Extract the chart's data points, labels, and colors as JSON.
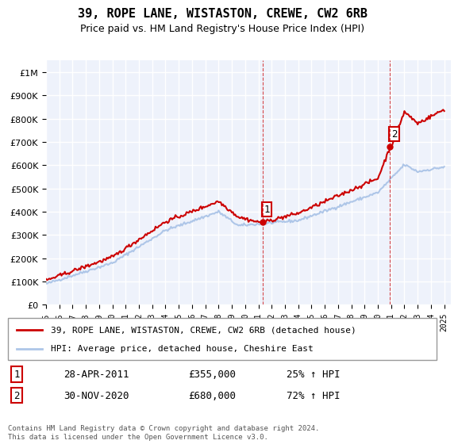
{
  "title": "39, ROPE LANE, WISTASTON, CREWE, CW2 6RB",
  "subtitle": "Price paid vs. HM Land Registry's House Price Index (HPI)",
  "ylabel_ticks": [
    "£0",
    "£100K",
    "£200K",
    "£300K",
    "£400K",
    "£500K",
    "£600K",
    "£700K",
    "£800K",
    "£900K",
    "£1M"
  ],
  "ytick_values": [
    0,
    100000,
    200000,
    300000,
    400000,
    500000,
    600000,
    700000,
    800000,
    900000,
    1000000
  ],
  "ylim": [
    0,
    1050000
  ],
  "xlim_start": 1995.0,
  "xlim_end": 2025.5,
  "background_color": "#ffffff",
  "plot_bg_color": "#eef2fb",
  "grid_color": "#ffffff",
  "hpi_color": "#aec6e8",
  "price_color": "#cc0000",
  "sale1_x": 2011.32,
  "sale1_y": 355000,
  "sale2_x": 2020.92,
  "sale2_y": 680000,
  "legend_label1": "39, ROPE LANE, WISTASTON, CREWE, CW2 6RB (detached house)",
  "legend_label2": "HPI: Average price, detached house, Cheshire East",
  "annotation1_label": "1",
  "annotation2_label": "2",
  "table_row1": [
    "1",
    "28-APR-2011",
    "£355,000",
    "25% ↑ HPI"
  ],
  "table_row2": [
    "2",
    "30-NOV-2020",
    "£680,000",
    "72% ↑ HPI"
  ],
  "footer": "Contains HM Land Registry data © Crown copyright and database right 2024.\nThis data is licensed under the Open Government Licence v3.0.",
  "xtick_years": [
    1995,
    1996,
    1997,
    1998,
    1999,
    2000,
    2001,
    2002,
    2003,
    2004,
    2005,
    2006,
    2007,
    2008,
    2009,
    2010,
    2011,
    2012,
    2013,
    2014,
    2015,
    2016,
    2017,
    2018,
    2019,
    2020,
    2021,
    2022,
    2023,
    2024,
    2025
  ]
}
